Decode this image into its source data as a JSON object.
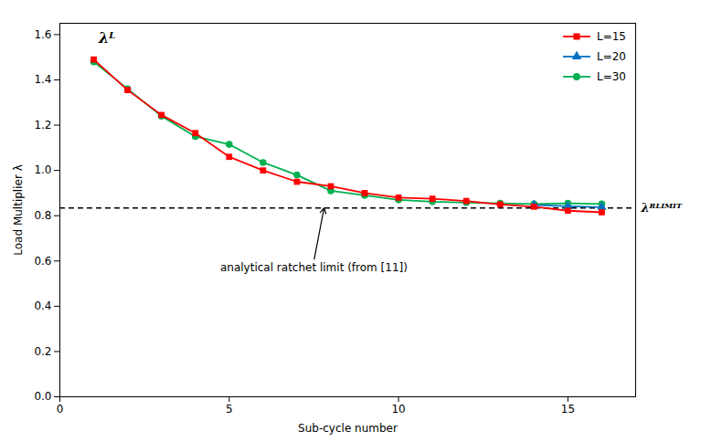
{
  "chart_data": {
    "type": "line",
    "xlabel": "Sub-cycle number",
    "ylabel": "Load Multiplier λ",
    "xlim": [
      0,
      17
    ],
    "ylim": [
      0,
      1.65
    ],
    "xticks": [
      0,
      5,
      10,
      15
    ],
    "yticks": [
      0,
      0.2,
      0.4,
      0.6,
      0.8,
      1,
      1.2,
      1.4,
      1.6
    ],
    "grid": false,
    "legend": "upper right",
    "series": [
      {
        "name": "L=15",
        "color": "#ff0000",
        "marker": "square",
        "x": [
          1,
          2,
          3,
          4,
          5,
          6,
          7,
          8,
          9,
          10,
          11,
          12,
          13,
          14,
          15,
          16
        ],
        "values": [
          1.49,
          1.355,
          1.245,
          1.165,
          1.06,
          1.0,
          0.95,
          0.93,
          0.9,
          0.88,
          0.875,
          0.865,
          0.85,
          0.84,
          0.822,
          0.815
        ]
      },
      {
        "name": "L=20",
        "color": "#0070c0",
        "marker": "triangle",
        "x": [
          14,
          15,
          16
        ],
        "values": [
          0.848,
          0.842,
          0.838
        ]
      },
      {
        "name": "L=30",
        "color": "#00b050",
        "marker": "circle",
        "x": [
          1,
          2,
          3,
          4,
          5,
          6,
          7,
          8,
          9,
          10,
          11,
          12,
          13,
          14,
          15,
          16
        ],
        "values": [
          1.48,
          1.36,
          1.24,
          1.15,
          1.115,
          1.035,
          0.98,
          0.91,
          0.89,
          0.87,
          0.862,
          0.858,
          0.855,
          0.852,
          0.855,
          0.852
        ]
      }
    ],
    "hline": {
      "y": 0.834,
      "label": "λᴿᴸᴵᴹᴵᵀ",
      "line_style": "dashed"
    },
    "annotations": [
      {
        "text": "λᴸ",
        "x": 1.15,
        "y": 1.565
      },
      {
        "text": "analytical ratchet limit (from [11])",
        "x": 7.5,
        "y": 0.6,
        "arrow_x": 7.8,
        "arrow_y": 0.834
      }
    ]
  }
}
